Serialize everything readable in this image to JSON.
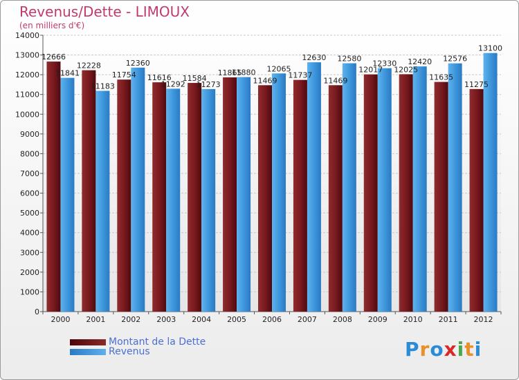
{
  "chart_data": {
    "type": "bar",
    "title": "Revenus/Dette - LIMOUX",
    "subtitle": "(en milliers d'€)",
    "categories": [
      "2000",
      "2001",
      "2002",
      "2003",
      "2004",
      "2005",
      "2006",
      "2007",
      "2008",
      "2009",
      "2010",
      "2011",
      "2012"
    ],
    "series": [
      {
        "name": "Montant de la Dette",
        "color": "#7a1a1f",
        "values": [
          12666,
          12228,
          11754,
          11616,
          11584,
          11865,
          11469,
          11737,
          11469,
          12017,
          12025,
          11635,
          11275
        ],
        "labels": [
          "12666",
          "12228",
          "11754",
          "11616",
          "11584",
          "11865",
          "11469",
          "11737",
          "11469",
          "12017",
          "12025",
          "11635",
          "11275"
        ]
      },
      {
        "name": "Revenus",
        "color": "#3a92d8",
        "values": [
          11841,
          11183,
          12360,
          11292,
          11273,
          11880,
          12065,
          12630,
          12580,
          12330,
          12420,
          12576,
          13100
        ],
        "labels": [
          "11841",
          "11183",
          "12360",
          "11292",
          "11273",
          "11880",
          "12065",
          "12630",
          "12580",
          "12330",
          "12420",
          "12576",
          "13100"
        ]
      }
    ],
    "ylim": [
      0,
      14000
    ],
    "yticks": [
      0,
      1000,
      2000,
      3000,
      4000,
      5000,
      6000,
      7000,
      8000,
      9000,
      10000,
      11000,
      12000,
      13000,
      14000
    ],
    "grid": true,
    "legend_position": "bottom-left"
  },
  "legend": {
    "dette_label": "Montant de la Dette",
    "revenus_label": "Revenus"
  },
  "logo": {
    "letters": [
      "P",
      "r",
      "o",
      "x",
      "i",
      "t",
      "i"
    ],
    "colors": [
      "#2a8bd6",
      "#e8912c",
      "#2a8bd6",
      "#d8282a",
      "#4aa84a",
      "#e8912c",
      "#2a8bd6"
    ]
  }
}
